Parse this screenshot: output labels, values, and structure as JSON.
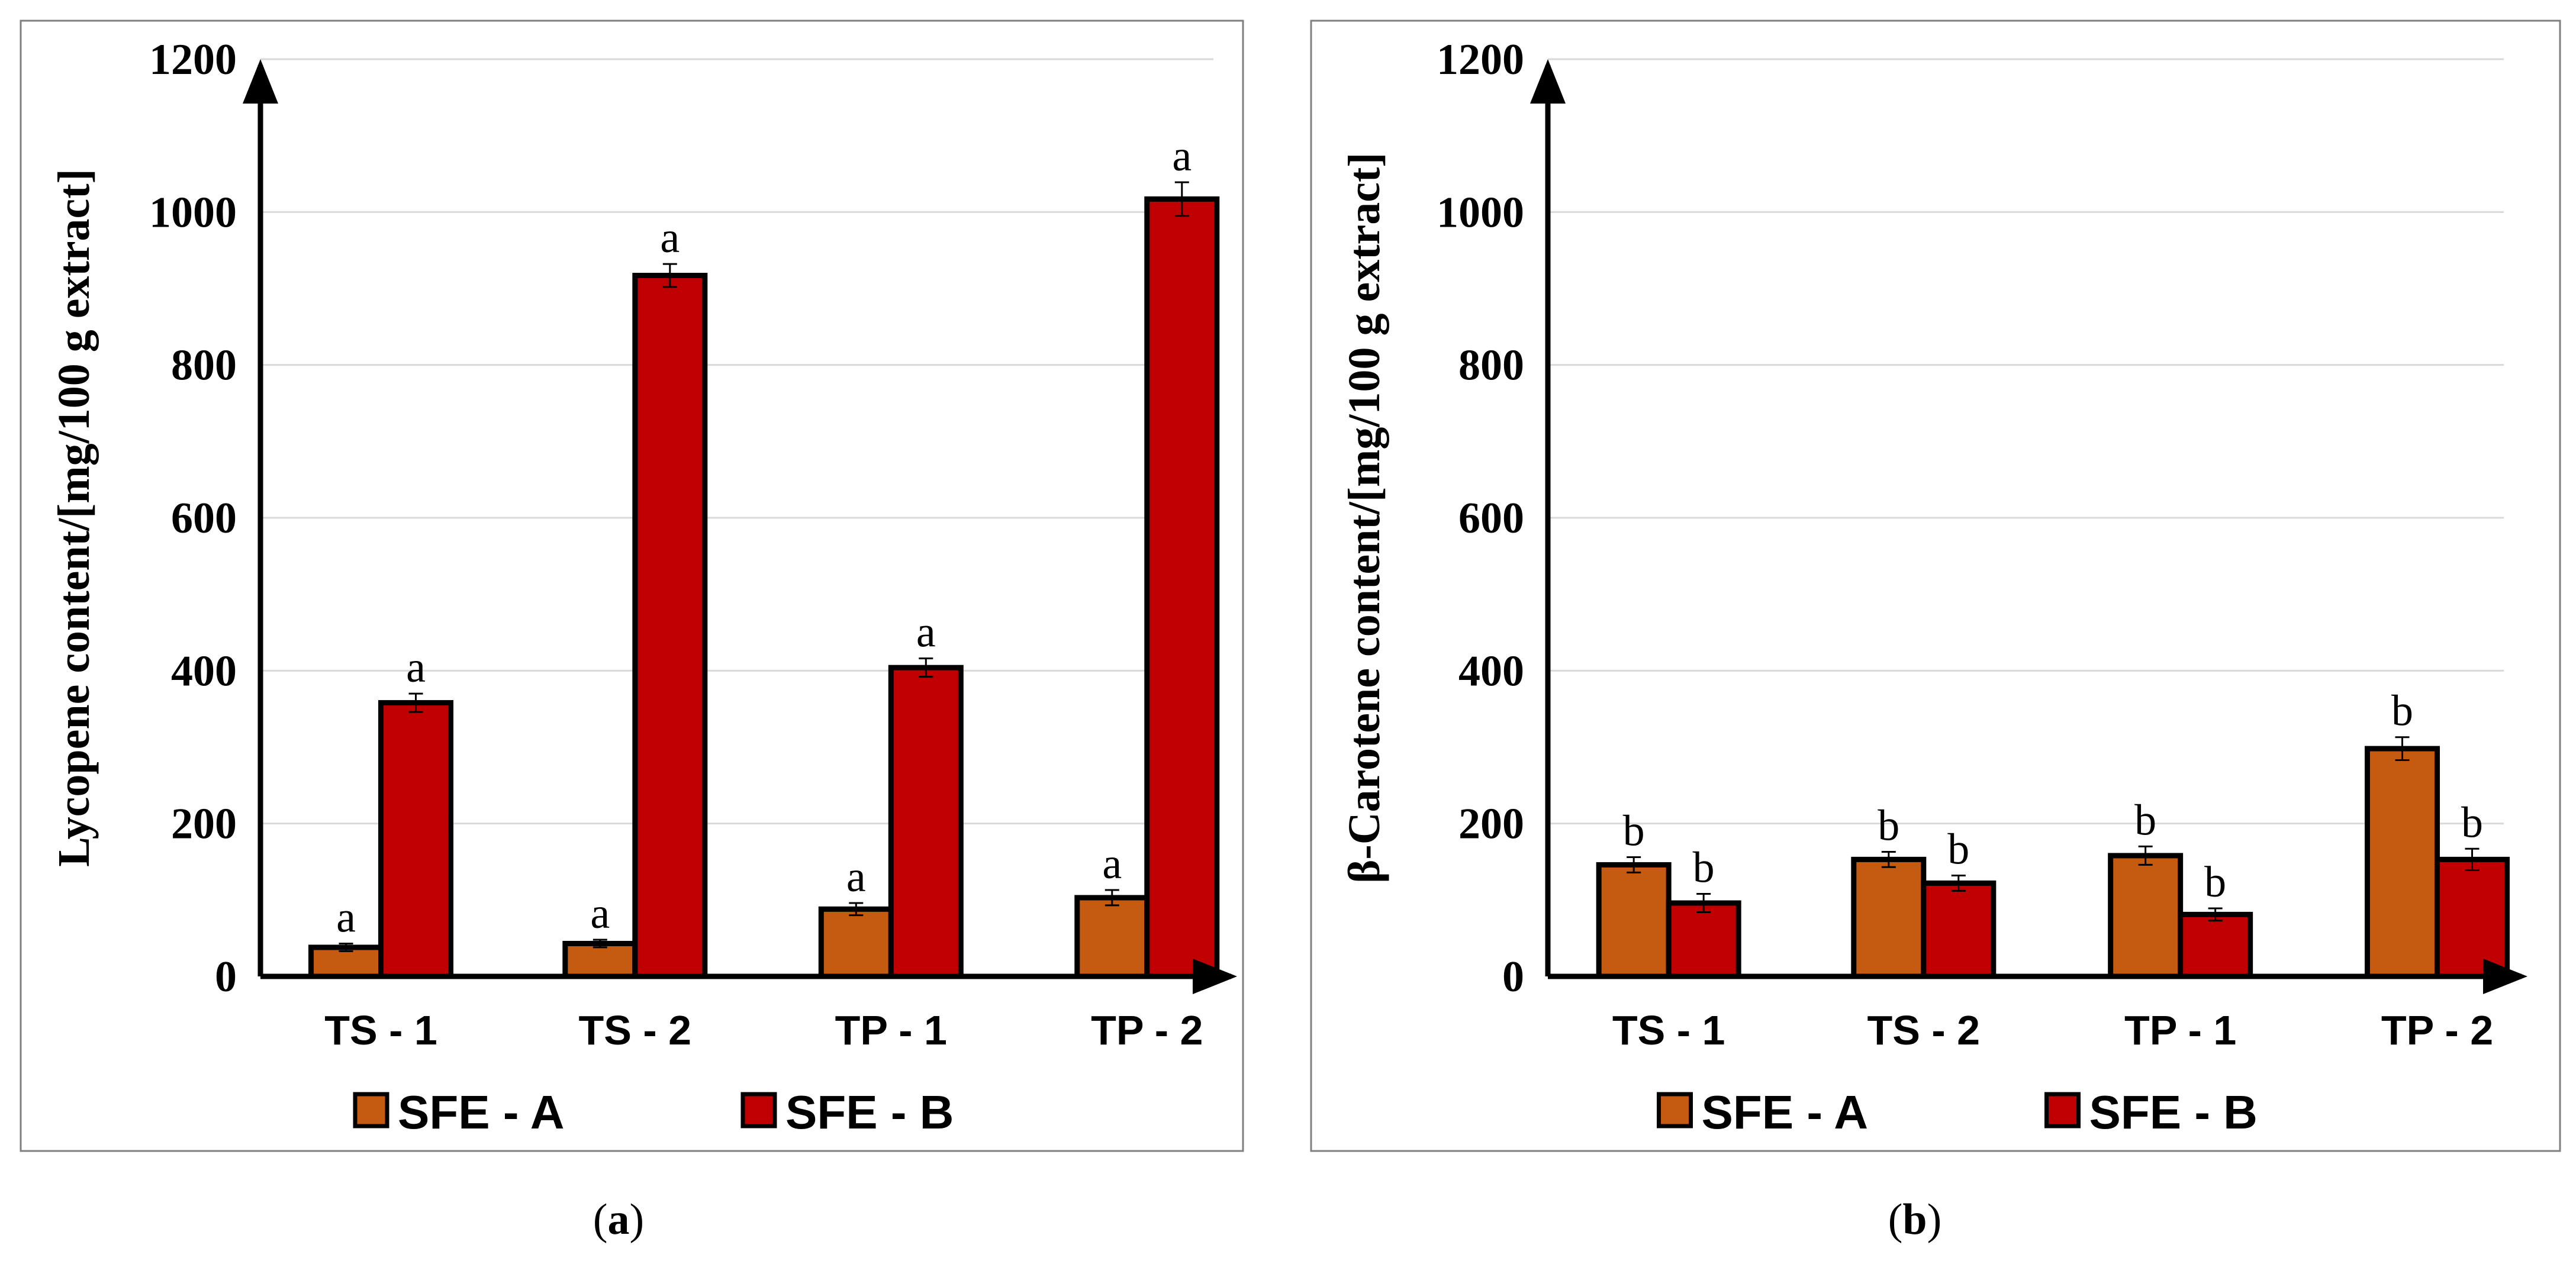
{
  "colors": {
    "sfe_a": "#C55A11",
    "sfe_b": "#C00000",
    "grid": "#D9D9D9",
    "frame": "#7F7F7F"
  },
  "chart_data": [
    {
      "type": "bar",
      "panel": "a",
      "caption": {
        "open": "(",
        "letter": "a",
        "close": ")"
      },
      "ylabel": "Lycopene content/[mg/100 g extract]",
      "xlabel": "",
      "ylim": [
        0,
        1200
      ],
      "yticks": [
        0,
        200,
        400,
        600,
        800,
        1000,
        1200
      ],
      "categories": [
        "TS - 1",
        "TS - 2",
        "TP - 1",
        "TP - 2"
      ],
      "legend_position": "bottom",
      "series": [
        {
          "name": "SFE - A",
          "color": "#C55A11",
          "values": [
            38,
            43,
            88,
            103
          ],
          "errors": [
            5,
            5,
            8,
            10
          ],
          "letters": [
            "a",
            "a",
            "a",
            "a"
          ]
        },
        {
          "name": "SFE - B",
          "color": "#C00000",
          "values": [
            358,
            917,
            404,
            1017
          ],
          "errors": [
            12,
            15,
            12,
            22
          ],
          "letters": [
            "a",
            "a",
            "a",
            "a"
          ]
        }
      ]
    },
    {
      "type": "bar",
      "panel": "b",
      "caption": {
        "open": "(",
        "letter": "b",
        "close": ")"
      },
      "ylabel": "β-Carotene content/[mg/100 g extract]",
      "xlabel": "",
      "ylim": [
        0,
        1200
      ],
      "yticks": [
        0,
        200,
        400,
        600,
        800,
        1000,
        1200
      ],
      "categories": [
        "TS - 1",
        "TS - 2",
        "TP - 1",
        "TP - 2"
      ],
      "legend_position": "bottom",
      "series": [
        {
          "name": "SFE - A",
          "color": "#C55A11",
          "values": [
            146,
            153,
            158,
            298
          ],
          "errors": [
            10,
            10,
            12,
            15
          ],
          "letters": [
            "b",
            "b",
            "b",
            "b"
          ]
        },
        {
          "name": "SFE - B",
          "color": "#C00000",
          "values": [
            96,
            122,
            81,
            153
          ],
          "errors": [
            12,
            10,
            8,
            14
          ],
          "letters": [
            "b",
            "b",
            "b",
            "b"
          ]
        }
      ]
    }
  ]
}
